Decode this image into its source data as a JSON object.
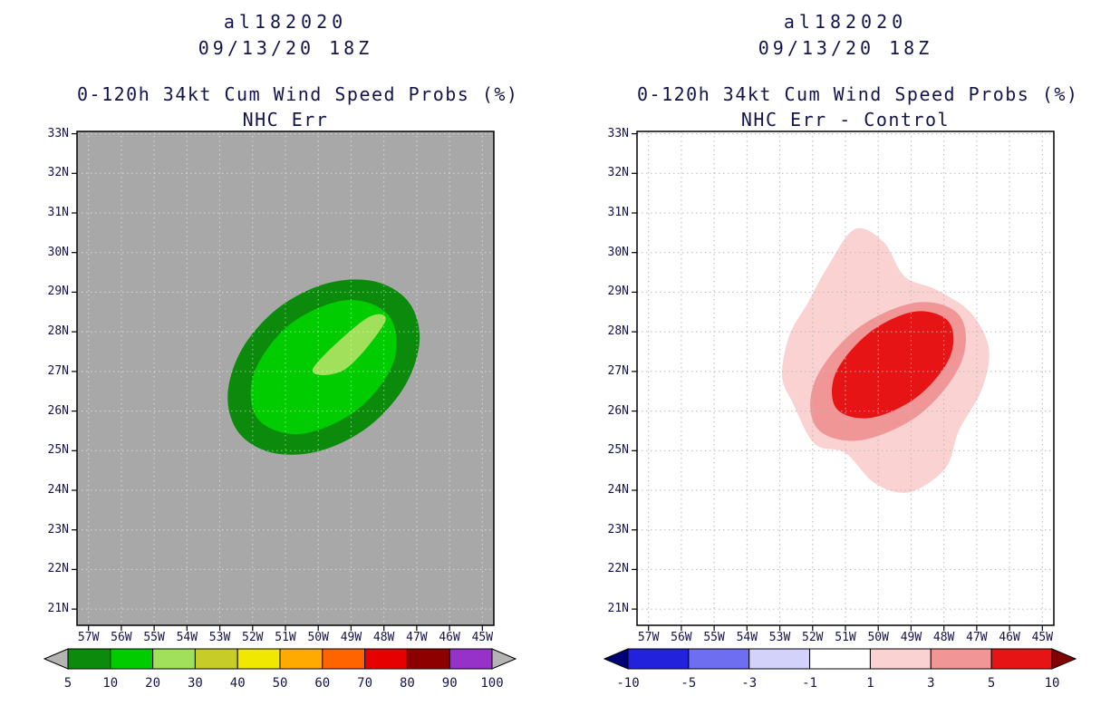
{
  "page": {
    "background": "#ffffff",
    "text_color": "#14144c"
  },
  "chart_data": [
    {
      "type": "heatmap",
      "subtype": "filled_contour_probability_map",
      "storm_id": "al182020",
      "init_time": "09/13/20 18Z",
      "heading": "0-120h 34kt Cum Wind Speed Probs (%)",
      "subheading": "NHC Err",
      "units": "%",
      "map_background": "#a8a8a8",
      "grid_color": "rgba(255,255,255,0.55)",
      "grid_style": "dotted",
      "x_axis": {
        "range": [
          57.35,
          44.65
        ],
        "values": [
          57,
          56,
          55,
          54,
          53,
          52,
          51,
          50,
          49,
          48,
          47,
          46,
          45
        ],
        "labels": [
          "57W",
          "56W",
          "55W",
          "54W",
          "53W",
          "52W",
          "51W",
          "50W",
          "49W",
          "48W",
          "47W",
          "46W",
          "45W"
        ]
      },
      "y_axis": {
        "range": [
          33.06,
          20.59
        ],
        "values": [
          33,
          32,
          31,
          30,
          29,
          28,
          27,
          26,
          25,
          24,
          23,
          22,
          21
        ],
        "labels": [
          "33N",
          "32N",
          "31N",
          "30N",
          "29N",
          "28N",
          "27N",
          "26N",
          "25N",
          "24N",
          "23N",
          "22N",
          "21N"
        ]
      },
      "contours": [
        {
          "level": 5,
          "label": "5pct",
          "color": "#0c8a0c",
          "polygon": [
            [
              47.27,
              28.78
            ],
            [
              46.91,
              27.82
            ],
            [
              47.35,
              26.65
            ],
            [
              48.45,
              25.62
            ],
            [
              49.92,
              25.0
            ],
            [
              51.36,
              24.94
            ],
            [
              52.41,
              25.44
            ],
            [
              52.76,
              26.4
            ],
            [
              52.32,
              27.57
            ],
            [
              51.22,
              28.6
            ],
            [
              49.75,
              29.22
            ],
            [
              48.32,
              29.28
            ]
          ]
        },
        {
          "level": 10,
          "label": "10pct",
          "color": "#00cc00",
          "polygon": [
            [
              47.85,
              28.41
            ],
            [
              47.7,
              27.25
            ],
            [
              48.8,
              26.04
            ],
            [
              50.53,
              25.42
            ],
            [
              51.85,
              25.81
            ],
            [
              51.96,
              26.95
            ],
            [
              50.86,
              28.19
            ],
            [
              49.15,
              28.8
            ]
          ]
        },
        {
          "level": 20,
          "label": "20pct",
          "color": "#a0e05a",
          "polygon": [
            [
              50.17,
              27.06
            ],
            [
              48.57,
              28.32
            ],
            [
              47.96,
              28.26
            ],
            [
              49.17,
              27.06
            ]
          ]
        }
      ],
      "colorbar": {
        "labels": [
          "5",
          "10",
          "20",
          "30",
          "40",
          "50",
          "60",
          "70",
          "80",
          "90",
          "100"
        ],
        "colors": [
          "#0c8a0c",
          "#00cc00",
          "#a0e05a",
          "#c8cc28",
          "#f0e800",
          "#ffaa00",
          "#ff6400",
          "#e60000",
          "#8c0000",
          "#9632c8"
        ],
        "under_color": "#b4b4b4",
        "over_color": "#b4b4b4"
      }
    },
    {
      "type": "heatmap",
      "subtype": "filled_contour_difference_map",
      "storm_id": "al182020",
      "init_time": "09/13/20 18Z",
      "heading": "0-120h 34kt Cum Wind Speed Probs (%)",
      "subheading": "NHC Err - Control",
      "units": "%",
      "map_background": "#ffffff",
      "grid_color": "#b9b9b9",
      "grid_style": "dotted",
      "x_axis": {
        "range": [
          57.35,
          44.65
        ],
        "values": [
          57,
          56,
          55,
          54,
          53,
          52,
          51,
          50,
          49,
          48,
          47,
          46,
          45
        ],
        "labels": [
          "57W",
          "56W",
          "55W",
          "54W",
          "53W",
          "52W",
          "51W",
          "50W",
          "49W",
          "48W",
          "47W",
          "46W",
          "45W"
        ]
      },
      "y_axis": {
        "range": [
          33.06,
          20.59
        ],
        "values": [
          33,
          32,
          31,
          30,
          29,
          28,
          27,
          26,
          25,
          24,
          23,
          22,
          21
        ],
        "labels": [
          "33N",
          "32N",
          "31N",
          "30N",
          "29N",
          "28N",
          "27N",
          "26N",
          "25N",
          "24N",
          "23N",
          "22N",
          "21N"
        ]
      },
      "contours": [
        {
          "level": 1,
          "label": "plus1",
          "color": "#fad2d2",
          "polygon": [
            [
              50.72,
              30.59
            ],
            [
              49.84,
              30.27
            ],
            [
              49.2,
              29.4
            ],
            [
              48.23,
              29.06
            ],
            [
              47.18,
              28.48
            ],
            [
              46.63,
              27.57
            ],
            [
              46.85,
              26.54
            ],
            [
              47.54,
              25.51
            ],
            [
              47.96,
              24.55
            ],
            [
              49.06,
              23.95
            ],
            [
              50.11,
              24.18
            ],
            [
              51.0,
              24.94
            ],
            [
              51.94,
              25.17
            ],
            [
              52.6,
              26.2
            ],
            [
              52.93,
              26.88
            ],
            [
              52.71,
              27.91
            ],
            [
              52.16,
              28.71
            ],
            [
              51.55,
              29.63
            ]
          ]
        },
        {
          "level": 1,
          "label": "plus1-spot",
          "color": "#fad2d2",
          "polygon": [
            [
              48.45,
              24.8
            ],
            [
              48.29,
              24.66
            ],
            [
              48.45,
              24.52
            ],
            [
              48.62,
              24.66
            ]
          ]
        },
        {
          "level": 3,
          "label": "plus3",
          "color": "#f09696",
          "polygon": [
            [
              47.52,
              28.41
            ],
            [
              47.46,
              27.25
            ],
            [
              48.7,
              25.94
            ],
            [
              50.55,
              25.26
            ],
            [
              51.88,
              25.58
            ],
            [
              51.94,
              26.74
            ],
            [
              50.69,
              28.05
            ],
            [
              48.84,
              28.74
            ]
          ]
        },
        {
          "level": 5,
          "label": "plus5",
          "color": "#e61414",
          "polygon": [
            [
              47.85,
              28.25
            ],
            [
              47.82,
              27.36
            ],
            [
              48.81,
              26.36
            ],
            [
              50.22,
              25.83
            ],
            [
              51.27,
              26.06
            ],
            [
              51.3,
              26.95
            ],
            [
              50.3,
              27.96
            ],
            [
              48.9,
              28.51
            ]
          ]
        }
      ],
      "colorbar": {
        "labels": [
          "-10",
          "-5",
          "-3",
          "-1",
          "1",
          "3",
          "5",
          "10"
        ],
        "colors": [
          "#2222dc",
          "#6e6ef0",
          "#d2d2fa",
          "#ffffff",
          "#fad2d2",
          "#f09696",
          "#e61414"
        ],
        "under_color": "#000078",
        "over_color": "#820000"
      }
    }
  ]
}
